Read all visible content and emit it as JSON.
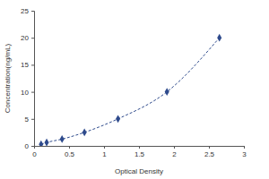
{
  "chart_data": {
    "type": "line",
    "x_label": "Optical Density",
    "y_label": "Concentration(ng/mL)",
    "x": [
      0.1,
      0.18,
      0.4,
      0.72,
      1.2,
      1.9,
      2.65
    ],
    "values": [
      0.31,
      0.63,
      1.25,
      2.5,
      5,
      10,
      20
    ],
    "color": "#2e4a8c",
    "marker": "diamond",
    "line_style": "dashed",
    "xlim": [
      0,
      3
    ],
    "xticks": [
      0,
      0.5,
      1,
      1.5,
      2,
      2.5,
      3
    ],
    "ylim": [
      0,
      25
    ],
    "yticks": [
      0,
      5,
      10,
      15,
      20,
      25
    ]
  }
}
